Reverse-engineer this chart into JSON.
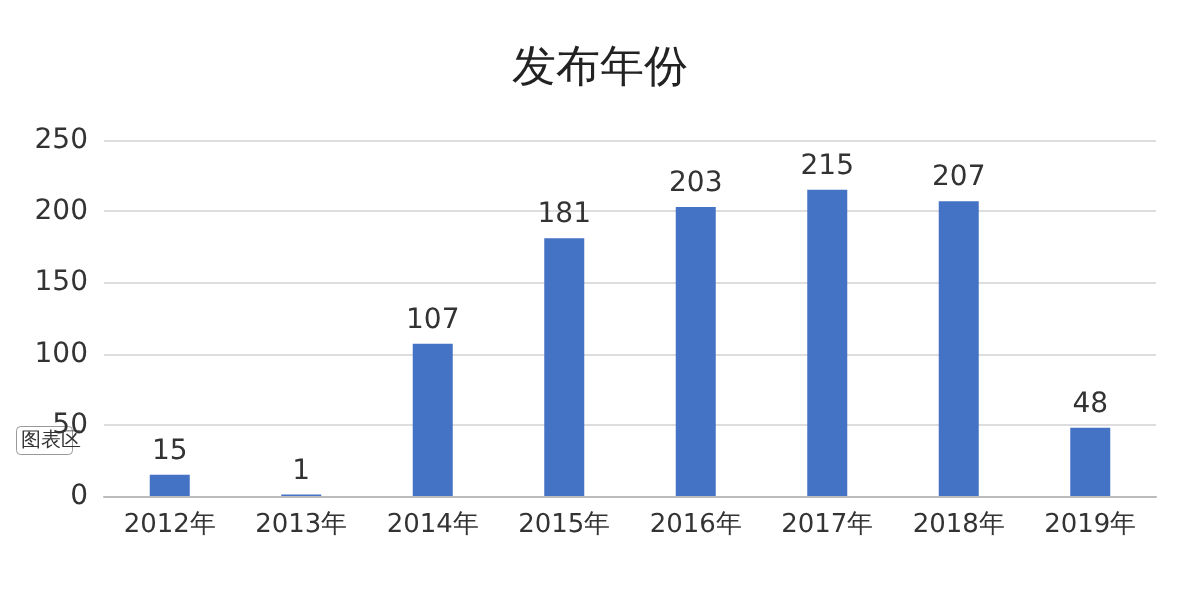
{
  "chart_data": {
    "type": "bar",
    "title": "发布年份",
    "categories": [
      "2012年",
      "2013年",
      "2014年",
      "2015年",
      "2016年",
      "2017年",
      "2018年",
      "2019年"
    ],
    "values": [
      15,
      1,
      107,
      181,
      203,
      215,
      207,
      48
    ],
    "color": "#4472c4",
    "ylim": [
      0,
      250
    ],
    "yticks": [
      0,
      50,
      100,
      150,
      200,
      250
    ],
    "grid": "y",
    "data_labels": true,
    "annotations": [
      "图表区"
    ]
  }
}
